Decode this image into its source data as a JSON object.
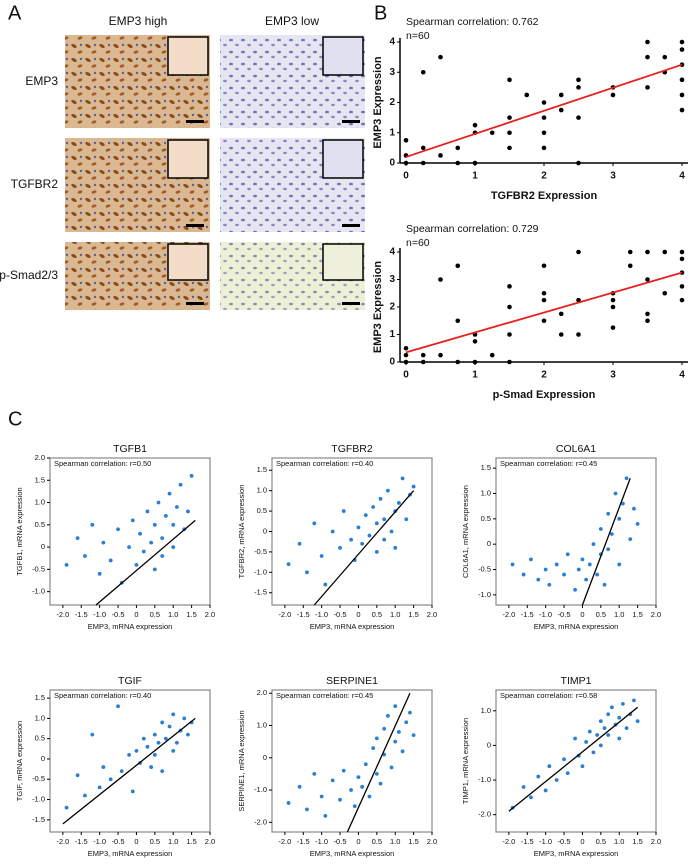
{
  "panel_labels": [
    "A",
    "B",
    "C"
  ],
  "ihc": {
    "columns": [
      "EMP3 high",
      "EMP3 low"
    ],
    "rows": [
      "EMP3",
      "TGFBR2",
      "p-Smad2/3"
    ]
  },
  "chart_data": [
    {
      "type": "scatter",
      "annotations": [
        "Spearman correlation: 0.762",
        "n=60"
      ],
      "x_label": "TGFBR2 Expression",
      "y_label": "EMP3 Expression",
      "color": "#000000",
      "x": [
        0,
        0,
        0,
        0.25,
        0.25,
        0.25,
        0.5,
        0.5,
        0.75,
        0.75,
        1,
        1,
        1,
        1.25,
        1.5,
        1.5,
        1.5,
        1.5,
        1.75,
        2,
        2,
        2,
        2,
        2.25,
        2.25,
        2.5,
        2.5,
        2.5,
        2.5,
        3,
        3,
        3.5,
        3.5,
        3.5,
        3.75,
        3.75,
        4,
        4,
        4,
        4,
        4,
        4
      ],
      "values": [
        0,
        0.25,
        0.75,
        0,
        0.5,
        3,
        0.25,
        3.5,
        0,
        0.5,
        0,
        1,
        1.25,
        1,
        0.5,
        1,
        1.5,
        2.75,
        2.25,
        0.5,
        1,
        1.5,
        2,
        1.75,
        2.25,
        1.5,
        2.5,
        2.75,
        0,
        2.25,
        2.5,
        2.5,
        3.5,
        4,
        3,
        3.5,
        1.75,
        2.25,
        2.75,
        3.25,
        3.75,
        4
      ],
      "fit_line": {
        "x": [
          0,
          4
        ],
        "values": [
          0.2,
          3.25
        ],
        "color": "#e8201e"
      },
      "xlim": [
        0,
        4
      ],
      "ylim": [
        0,
        4
      ],
      "xticks": [
        0,
        1,
        2,
        3,
        4
      ],
      "yticks": [
        0,
        1,
        2,
        3,
        4
      ],
      "box": false
    },
    {
      "type": "scatter",
      "annotations": [
        "Spearman correlation: 0.729",
        "n=60"
      ],
      "x_label": "p-Smad Expression",
      "y_label": "EMP3 Expression",
      "color": "#000000",
      "x": [
        0,
        0,
        0,
        0.25,
        0.25,
        0.5,
        0.5,
        0.75,
        0.75,
        0.75,
        1,
        1,
        1,
        1.25,
        1.5,
        1.5,
        1.5,
        1.5,
        2,
        2,
        2,
        2,
        2.25,
        2.25,
        2.5,
        2.5,
        2.5,
        3,
        3,
        3,
        3,
        3.25,
        3.25,
        3.5,
        3.5,
        3.5,
        3.5,
        3.75,
        3.75,
        4,
        4,
        4,
        4,
        4
      ],
      "values": [
        0,
        0.25,
        0.5,
        0,
        0.25,
        0.25,
        3,
        0,
        1.5,
        3.5,
        0,
        0.75,
        1,
        0.25,
        0,
        1,
        2,
        2.75,
        1.5,
        2.25,
        2.5,
        3.5,
        1,
        1.75,
        1,
        2.25,
        4,
        1.25,
        2,
        2.25,
        2.5,
        3.5,
        4,
        1.5,
        1.75,
        3,
        4,
        2.5,
        4,
        2.25,
        2.75,
        3.25,
        3.75,
        4
      ],
      "fit_line": {
        "x": [
          0,
          4
        ],
        "values": [
          0.35,
          3.25
        ],
        "color": "#e8201e"
      },
      "xlim": [
        0,
        4
      ],
      "ylim": [
        0,
        4
      ],
      "xticks": [
        0,
        1,
        2,
        3,
        4
      ],
      "yticks": [
        0,
        1,
        2,
        3,
        4
      ],
      "box": false
    },
    {
      "type": "scatter",
      "title": "TGFB1",
      "annotations": [
        "Spearman correlation: r=0.50"
      ],
      "x_label": "EMP3, mRNA expression",
      "y_label": "TGFB1, mRNA expression",
      "color": "#2a7fd4",
      "x": [
        -1.9,
        -1.6,
        -1.4,
        -1.2,
        -1.0,
        -0.9,
        -0.7,
        -0.5,
        -0.4,
        -0.2,
        -0.1,
        0.0,
        0.1,
        0.2,
        0.3,
        0.4,
        0.5,
        0.5,
        0.6,
        0.7,
        0.7,
        0.8,
        0.9,
        1.0,
        1.0,
        1.1,
        1.2,
        1.3,
        1.4,
        1.5
      ],
      "values": [
        -0.4,
        0.2,
        -0.2,
        0.5,
        -0.6,
        0.1,
        -0.3,
        0.4,
        -0.8,
        0.0,
        0.6,
        -0.4,
        0.3,
        -0.1,
        0.8,
        0.1,
        -0.5,
        0.5,
        1.0,
        0.2,
        -0.2,
        0.7,
        1.2,
        0.0,
        0.5,
        0.9,
        1.4,
        0.4,
        0.8,
        1.6
      ],
      "fit_line": {
        "x": [
          -1.1,
          1.6
        ],
        "values": [
          -1.3,
          0.6
        ],
        "color": "#000000"
      },
      "xlim": [
        -2.35,
        2.0
      ],
      "ylim": [
        -1.3,
        2.0
      ],
      "xticks": [
        {
          "value": -2,
          "label": "-2.0"
        },
        -1.5,
        {
          "value": -1,
          "label": "-1.0"
        },
        -0.5,
        0,
        0.5,
        {
          "value": 1,
          "label": "1.0"
        },
        1.5,
        {
          "value": 2,
          "label": "2.0"
        }
      ],
      "yticks": [
        {
          "value": -1,
          "label": "-1.0"
        },
        -0.5,
        0,
        0.5,
        {
          "value": 1,
          "label": "1.0"
        },
        1.5,
        {
          "value": 2,
          "label": "2.0"
        }
      ],
      "box": true
    },
    {
      "type": "scatter",
      "title": "TGFBR2",
      "annotations": [
        "Spearman correlation: r=0.40"
      ],
      "x_label": "EMP3, mRNA expression",
      "y_label": "TGFBR2, mRNA expression",
      "color": "#2a7fd4",
      "x": [
        -1.9,
        -1.6,
        -1.4,
        -1.2,
        -1.0,
        -0.9,
        -0.7,
        -0.5,
        -0.4,
        -0.2,
        -0.1,
        0.0,
        0.1,
        0.2,
        0.3,
        0.4,
        0.5,
        0.5,
        0.6,
        0.7,
        0.7,
        0.8,
        0.9,
        1.0,
        1.0,
        1.1,
        1.2,
        1.3,
        1.4,
        1.5
      ],
      "values": [
        -0.8,
        -0.3,
        -1.0,
        0.2,
        -0.6,
        -1.3,
        0.0,
        -0.4,
        0.5,
        -0.2,
        -0.7,
        0.1,
        -0.3,
        0.4,
        -0.1,
        0.6,
        -0.5,
        0.2,
        0.8,
        -0.2,
        0.3,
        1.0,
        0.0,
        0.5,
        -0.4,
        0.7,
        1.3,
        0.3,
        0.9,
        1.1
      ],
      "fit_line": {
        "x": [
          -1.2,
          1.5
        ],
        "values": [
          -1.8,
          1.0
        ],
        "color": "#000000"
      },
      "xlim": [
        -2.35,
        2.0
      ],
      "ylim": [
        -1.8,
        1.8
      ],
      "xticks": [
        {
          "value": -2,
          "label": "-2.0"
        },
        -1.5,
        {
          "value": -1,
          "label": "-1.0"
        },
        -0.5,
        0,
        0.5,
        {
          "value": 1,
          "label": "1.0"
        },
        1.5,
        {
          "value": 2,
          "label": "2.0"
        }
      ],
      "yticks": [
        -1.5,
        {
          "value": -1,
          "label": "-1.0"
        },
        -0.5,
        0,
        0.5,
        {
          "value": 1,
          "label": "1.0"
        },
        1.5
      ],
      "box": true
    },
    {
      "type": "scatter",
      "title": "COL6A1",
      "annotations": [
        "Spearman correlation: r=0.45"
      ],
      "x_label": "EMP3, mRNA expression",
      "y_label": "COL6A1, mRNA expression",
      "color": "#2a7fd4",
      "x": [
        -1.9,
        -1.6,
        -1.4,
        -1.2,
        -1.0,
        -0.9,
        -0.7,
        -0.5,
        -0.4,
        -0.2,
        -0.1,
        0.0,
        0.1,
        0.2,
        0.3,
        0.4,
        0.5,
        0.5,
        0.6,
        0.7,
        0.7,
        0.8,
        0.9,
        1.0,
        1.0,
        1.1,
        1.2,
        1.3,
        1.4,
        1.5
      ],
      "values": [
        -0.4,
        -0.6,
        -0.3,
        -0.7,
        -0.5,
        -0.8,
        -0.4,
        -0.6,
        -0.2,
        -0.9,
        -0.5,
        -0.3,
        -0.7,
        -0.4,
        0.0,
        -0.6,
        -0.2,
        0.3,
        -0.8,
        0.6,
        -0.1,
        0.2,
        1.0,
        -0.4,
        0.5,
        0.8,
        1.3,
        0.1,
        0.7,
        0.4
      ],
      "fit_line": {
        "x": [
          0,
          1.3
        ],
        "values": [
          -1.2,
          1.3
        ],
        "color": "#000000"
      },
      "xlim": [
        -2.35,
        2.0
      ],
      "ylim": [
        -1.2,
        1.7
      ],
      "xticks": [
        {
          "value": -2,
          "label": "-2.0"
        },
        -1.5,
        {
          "value": -1,
          "label": "-1.0"
        },
        -0.5,
        0,
        0.5,
        {
          "value": 1,
          "label": "1.0"
        },
        1.5,
        {
          "value": 2,
          "label": "2.0"
        }
      ],
      "yticks": [
        {
          "value": -1,
          "label": "-1.0"
        },
        -0.5,
        0,
        0.5,
        {
          "value": 1,
          "label": "1.0"
        },
        1.5
      ],
      "box": true
    },
    {
      "type": "scatter",
      "title": "TGIF",
      "annotations": [
        "Spearman correlation: r=0.40"
      ],
      "x_label": "EMP3, mRNA expression",
      "y_label": "TGIF, mRNA expression",
      "color": "#2a7fd4",
      "x": [
        -1.9,
        -1.6,
        -1.4,
        -1.2,
        -1.0,
        -0.9,
        -0.7,
        -0.5,
        -0.4,
        -0.2,
        -0.1,
        0.0,
        0.1,
        0.2,
        0.3,
        0.4,
        0.5,
        0.5,
        0.6,
        0.7,
        0.7,
        0.8,
        0.9,
        1.0,
        1.0,
        1.1,
        1.2,
        1.3,
        1.4,
        1.5
      ],
      "values": [
        -1.2,
        -0.4,
        -0.9,
        0.6,
        -0.7,
        -0.2,
        -0.5,
        1.3,
        -0.3,
        0.1,
        -0.8,
        0.2,
        -0.1,
        0.5,
        0.3,
        -0.2,
        0.6,
        0.1,
        0.4,
        0.9,
        -0.3,
        0.5,
        0.8,
        0.2,
        1.1,
        0.4,
        0.7,
        1.0,
        0.6,
        0.9
      ],
      "fit_line": {
        "x": [
          -2.0,
          1.6
        ],
        "values": [
          -1.6,
          1.0
        ],
        "color": "#000000"
      },
      "xlim": [
        -2.35,
        2.0
      ],
      "ylim": [
        -1.8,
        1.7
      ],
      "xticks": [
        {
          "value": -2,
          "label": "-2.0"
        },
        -1.5,
        {
          "value": -1,
          "label": "-1.0"
        },
        -0.5,
        0,
        0.5,
        {
          "value": 1,
          "label": "1.0"
        },
        1.5,
        {
          "value": 2,
          "label": "2.0"
        }
      ],
      "yticks": [
        -1.5,
        {
          "value": -1,
          "label": "-1.0"
        },
        -0.5,
        0,
        0.5,
        {
          "value": 1,
          "label": "1.0"
        },
        1.5
      ],
      "box": true
    },
    {
      "type": "scatter",
      "title": "SERPINE1",
      "annotations": [
        "Spearman correlation: r=0.45"
      ],
      "x_label": "EMP3, mRNA expression",
      "y_label": "SERPINE1, mRNA expression",
      "color": "#2a7fd4",
      "x": [
        -1.9,
        -1.6,
        -1.4,
        -1.2,
        -1.0,
        -0.9,
        -0.7,
        -0.5,
        -0.4,
        -0.2,
        -0.1,
        0.0,
        0.1,
        0.2,
        0.3,
        0.4,
        0.5,
        0.5,
        0.6,
        0.7,
        0.7,
        0.8,
        0.9,
        1.0,
        1.0,
        1.1,
        1.2,
        1.3,
        1.4,
        1.5
      ],
      "values": [
        -1.4,
        -0.9,
        -1.6,
        -0.5,
        -1.2,
        -1.8,
        -0.7,
        -1.3,
        -0.4,
        -1.0,
        -1.5,
        -0.6,
        -0.9,
        -0.2,
        -1.2,
        0.3,
        -0.5,
        0.6,
        -0.8,
        0.9,
        0.1,
        1.3,
        -0.3,
        0.5,
        1.6,
        0.8,
        0.2,
        1.1,
        1.4,
        0.7
      ],
      "fit_line": {
        "x": [
          -0.3,
          1.4
        ],
        "values": [
          -2.3,
          2.0
        ],
        "color": "#000000"
      },
      "xlim": [
        -2.35,
        2.0
      ],
      "ylim": [
        -2.3,
        2.1
      ],
      "xticks": [
        {
          "value": -2,
          "label": "-2.0"
        },
        -1.5,
        {
          "value": -1,
          "label": "-1.0"
        },
        -0.5,
        0,
        0.5,
        {
          "value": 1,
          "label": "1.0"
        },
        1.5,
        {
          "value": 2,
          "label": "2.0"
        }
      ],
      "yticks": [
        {
          "value": -2,
          "label": "-2.0"
        },
        {
          "value": -1,
          "label": "-1.0"
        },
        0,
        {
          "value": 1,
          "label": "1.0"
        },
        {
          "value": 2,
          "label": "2.0"
        }
      ],
      "box": true
    },
    {
      "type": "scatter",
      "title": "TIMP1",
      "annotations": [
        "Spearman correlation: r=0.58"
      ],
      "x_label": "EMP3, mRNA expression",
      "y_label": "TIMP1, mRNA expression",
      "color": "#2a7fd4",
      "x": [
        -1.9,
        -1.6,
        -1.4,
        -1.2,
        -1.0,
        -0.9,
        -0.7,
        -0.5,
        -0.4,
        -0.2,
        -0.1,
        0.0,
        0.1,
        0.2,
        0.3,
        0.4,
        0.5,
        0.5,
        0.6,
        0.7,
        0.7,
        0.8,
        0.9,
        1.0,
        1.0,
        1.1,
        1.2,
        1.3,
        1.4,
        1.5
      ],
      "values": [
        -1.8,
        -1.2,
        -1.5,
        -0.9,
        -1.3,
        -0.6,
        -1.0,
        -0.4,
        -0.8,
        0.2,
        -0.3,
        -0.6,
        0.1,
        0.4,
        -0.2,
        0.3,
        0.7,
        0.0,
        0.5,
        0.9,
        0.3,
        1.1,
        0.6,
        0.2,
        0.8,
        1.2,
        0.5,
        0.9,
        1.3,
        0.7
      ],
      "fit_line": {
        "x": [
          -2.0,
          1.5
        ],
        "values": [
          -1.9,
          1.1
        ],
        "color": "#000000"
      },
      "xlim": [
        -2.35,
        2.0
      ],
      "ylim": [
        -2.5,
        1.6
      ],
      "xticks": [
        {
          "value": -2,
          "label": "-2.0"
        },
        -1.5,
        {
          "value": -1,
          "label": "-1.0"
        },
        -0.5,
        0,
        0.5,
        {
          "value": 1,
          "label": "1.0"
        },
        1.5,
        {
          "value": 2,
          "label": "2.0"
        }
      ],
      "yticks": [
        {
          "value": -2,
          "label": "-2.0"
        },
        {
          "value": -1,
          "label": "-1.0"
        },
        0,
        {
          "value": 1,
          "label": "1.0"
        }
      ],
      "box": true
    }
  ]
}
